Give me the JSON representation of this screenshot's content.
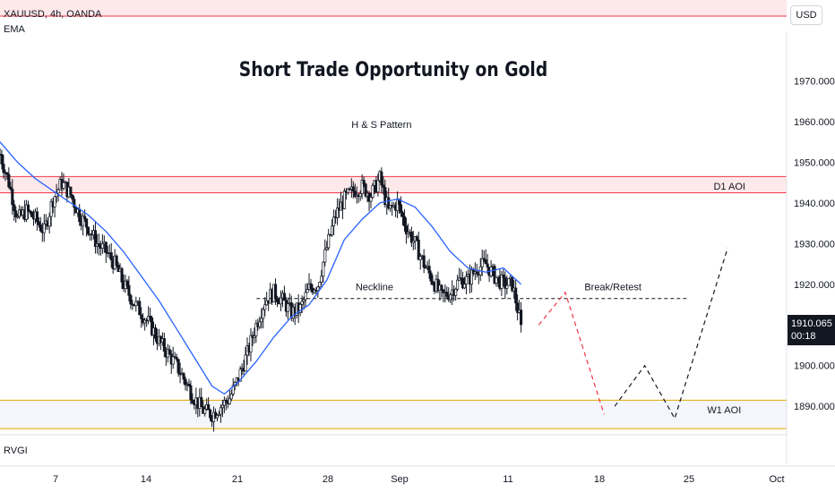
{
  "header": {
    "symbol": "XAUUSD, 4h, OANDA",
    "indicator": "EMA",
    "currency": "USD"
  },
  "indicator_pane": {
    "label": "RVGI"
  },
  "price_tag": {
    "value": "1910.065",
    "countdown": "00:18"
  },
  "colors": {
    "up": "#131722",
    "down": "#131722",
    "ema": "#2962ff",
    "d1_zone": "#f23645",
    "w1_zone": "#e0a800",
    "short_path": "#f23645",
    "long_path": "#131722"
  },
  "chart_data": {
    "type": "candlestick",
    "title": "Short Trade Opportunity on Gold",
    "ylim": [
      1883,
      1982
    ],
    "y_ticks": [
      1890,
      1900,
      1910,
      1920,
      1930,
      1940,
      1950,
      1960,
      1970
    ],
    "y_tick_labels": [
      "1890.000",
      "1900.000",
      "1910.000",
      "1920.000",
      "1930.000",
      "1940.000",
      "1950.000",
      "1960.000",
      "1970.000"
    ],
    "x_ticks": [
      "7",
      "14",
      "21",
      "28",
      "Sep",
      "11",
      "18",
      "25",
      "Oct"
    ],
    "annotations": {
      "hs_label": "H & S Pattern",
      "neckline_label": "Neckline",
      "break_retest_label": "Break/Retest",
      "d1_label": "D1 AOI",
      "w1_label": "W1 AOI"
    },
    "zones": {
      "d1": [
        1942.5,
        1946.5
      ],
      "w1": [
        1884.5,
        1891.5
      ]
    },
    "neckline": 1916.5,
    "last_price": 1910.065,
    "close_path": [
      [
        0,
        1952
      ],
      [
        5,
        1945
      ],
      [
        10,
        1936
      ],
      [
        15,
        1938
      ],
      [
        20,
        1936
      ],
      [
        25,
        1933
      ],
      [
        30,
        1941
      ],
      [
        35,
        1945
      ],
      [
        40,
        1942
      ],
      [
        45,
        1937
      ],
      [
        50,
        1934
      ],
      [
        55,
        1930
      ],
      [
        60,
        1928
      ],
      [
        65,
        1925
      ],
      [
        70,
        1920
      ],
      [
        75,
        1916
      ],
      [
        80,
        1913
      ],
      [
        85,
        1910
      ],
      [
        90,
        1906
      ],
      [
        95,
        1903
      ],
      [
        100,
        1900
      ],
      [
        105,
        1896
      ],
      [
        110,
        1892
      ],
      [
        115,
        1889
      ],
      [
        120,
        1888
      ],
      [
        125,
        1890
      ],
      [
        130,
        1892
      ],
      [
        135,
        1897
      ],
      [
        140,
        1903
      ],
      [
        145,
        1910
      ],
      [
        150,
        1916
      ],
      [
        155,
        1918
      ],
      [
        160,
        1916
      ],
      [
        165,
        1913
      ],
      [
        170,
        1914
      ],
      [
        175,
        1919
      ],
      [
        180,
        1920
      ],
      [
        185,
        1929
      ],
      [
        190,
        1937
      ],
      [
        195,
        1941
      ],
      [
        200,
        1943
      ],
      [
        205,
        1944
      ],
      [
        210,
        1942
      ],
      [
        215,
        1946
      ],
      [
        220,
        1938
      ],
      [
        225,
        1940
      ],
      [
        230,
        1934
      ],
      [
        235,
        1930
      ],
      [
        240,
        1925
      ],
      [
        245,
        1921
      ],
      [
        250,
        1917
      ],
      [
        255,
        1918
      ],
      [
        260,
        1921
      ],
      [
        265,
        1921
      ],
      [
        270,
        1924
      ],
      [
        275,
        1925
      ],
      [
        280,
        1922
      ],
      [
        285,
        1920
      ],
      [
        290,
        1920
      ],
      [
        295,
        1910
      ]
    ],
    "ema_path": [
      [
        0,
        1955
      ],
      [
        10,
        1950
      ],
      [
        20,
        1946
      ],
      [
        30,
        1943
      ],
      [
        40,
        1940
      ],
      [
        50,
        1937
      ],
      [
        60,
        1933
      ],
      [
        70,
        1928
      ],
      [
        80,
        1922
      ],
      [
        90,
        1916
      ],
      [
        100,
        1909
      ],
      [
        110,
        1902
      ],
      [
        120,
        1895
      ],
      [
        127,
        1893
      ],
      [
        135,
        1896
      ],
      [
        145,
        1901
      ],
      [
        155,
        1907
      ],
      [
        165,
        1912
      ],
      [
        175,
        1915
      ],
      [
        185,
        1921
      ],
      [
        195,
        1931
      ],
      [
        205,
        1936
      ],
      [
        215,
        1940
      ],
      [
        225,
        1941
      ],
      [
        235,
        1939
      ],
      [
        245,
        1934
      ],
      [
        255,
        1928
      ],
      [
        265,
        1924
      ],
      [
        275,
        1923
      ],
      [
        285,
        1924
      ],
      [
        295,
        1920
      ]
    ],
    "short_path": [
      [
        305,
        1910
      ],
      [
        320,
        1918
      ],
      [
        342,
        1888
      ]
    ],
    "long_path": [
      [
        348,
        1890
      ],
      [
        365,
        1900
      ],
      [
        382,
        1887
      ],
      [
        412,
        1929
      ]
    ],
    "hs_center_x": 216,
    "neckline_x_range": [
      130,
      390
    ],
    "x_range": [
      0,
      440
    ]
  }
}
